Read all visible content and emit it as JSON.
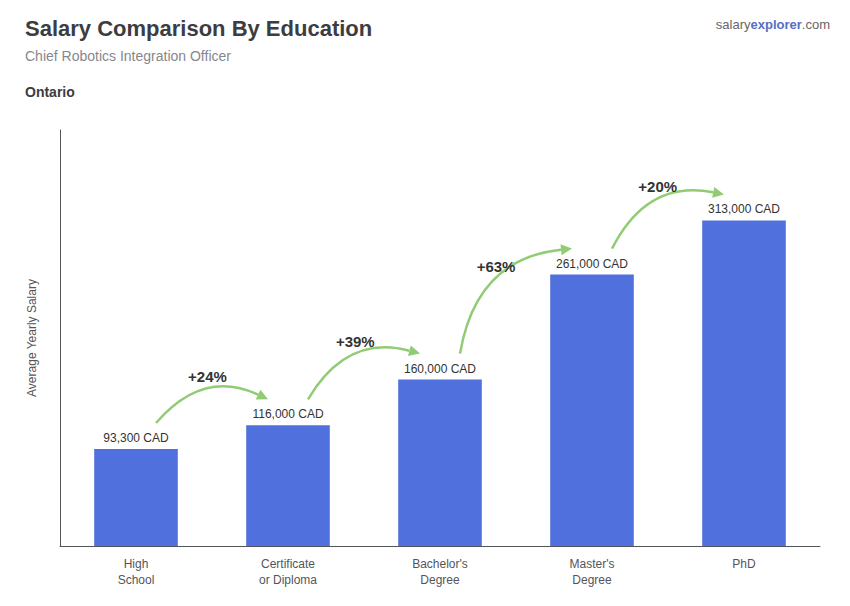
{
  "chart_data": {
    "type": "bar",
    "title": "Salary Comparison By Education",
    "subtitle": "Chief Robotics Integration Officer",
    "location": "Ontario",
    "watermark": [
      "salary",
      "explorer",
      ".com"
    ],
    "ylabel": "Average Yearly Salary",
    "categories": [
      "High\nSchool",
      "Certificate\nor Diploma",
      "Bachelor's\nDegree",
      "Master's\nDegree",
      "PhD"
    ],
    "values": [
      93300,
      116000,
      160000,
      261000,
      313000
    ],
    "value_labels": [
      "93,300 CAD",
      "116,000 CAD",
      "160,000 CAD",
      "261,000 CAD",
      "313,000 CAD"
    ],
    "data_labels": true,
    "annotations": [
      "+24%",
      "+39%",
      "+63%",
      "+20%"
    ],
    "ylim": [
      0,
      400000
    ],
    "grid": false,
    "tick_labels": "x"
  }
}
